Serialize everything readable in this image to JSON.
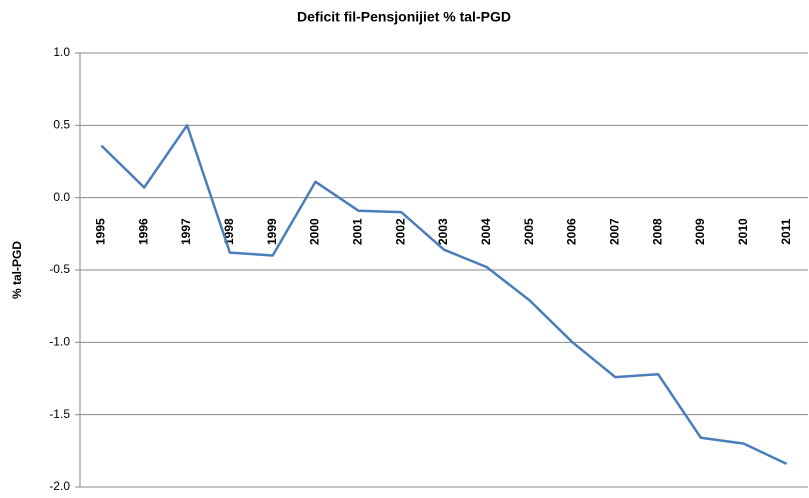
{
  "chart_data": {
    "type": "line",
    "title": "Deficit fil-Pensjonijiet % tal-PGD",
    "y_label": "% tal-PGD",
    "categories": [
      "1995",
      "1996",
      "1997",
      "1998",
      "1999",
      "2000",
      "2001",
      "2002",
      "2003",
      "2004",
      "2005",
      "2006",
      "2007",
      "2008",
      "2009",
      "2010",
      "2011"
    ],
    "values": [
      0.36,
      0.07,
      0.5,
      -0.38,
      -0.4,
      0.11,
      -0.09,
      -0.1,
      -0.36,
      -0.48,
      -0.71,
      -1.0,
      -1.24,
      -1.22,
      -1.66,
      -1.7,
      -1.84
    ],
    "color": "#4a7ebb",
    "ylim": [
      -2,
      1
    ],
    "yticks": [
      {
        "value": -2,
        "label": "-2.0"
      },
      -1.5,
      {
        "value": -1,
        "label": "-1.0"
      },
      -0.5,
      {
        "value": 0,
        "label": "0.0"
      },
      0.5,
      {
        "value": 1,
        "label": "1.0"
      }
    ],
    "grid": true
  }
}
